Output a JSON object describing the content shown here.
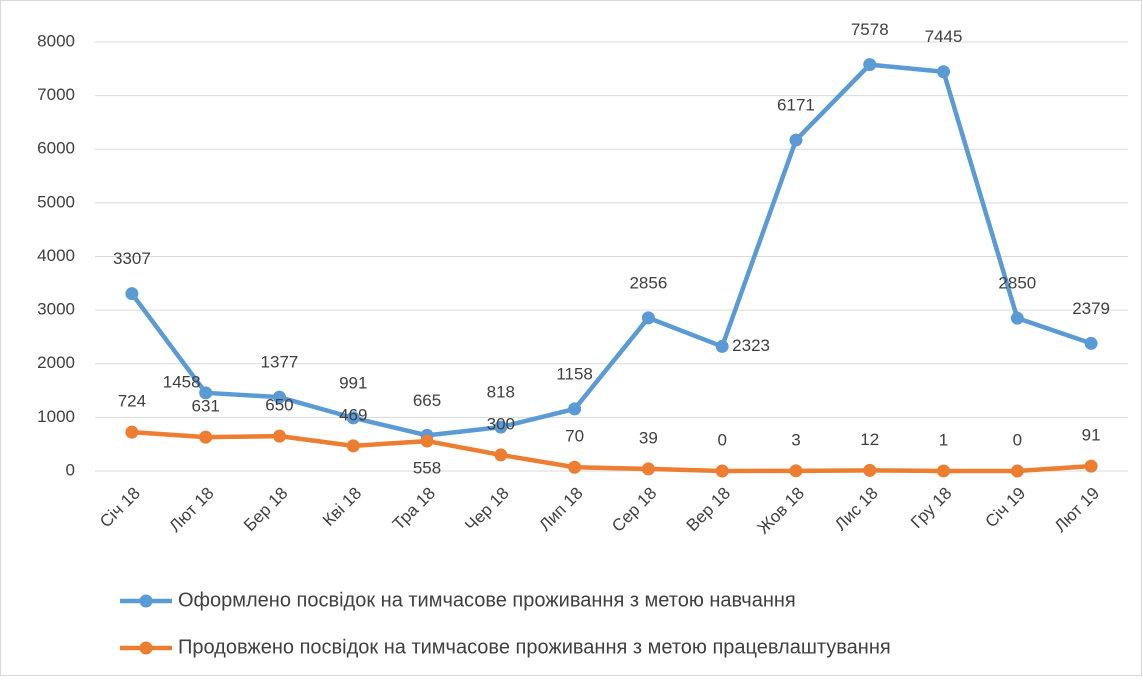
{
  "chart_data": {
    "type": "line",
    "categories": [
      "Січ 18",
      "Лют 18",
      "Бер 18",
      "Кві 18",
      "Тра 18",
      "Чер 18",
      "Лип 18",
      "Сер 18",
      "Вер 18",
      "Жов 18",
      "Лис 18",
      "Гру 18",
      "Січ 19",
      "Лют 19"
    ],
    "series": [
      {
        "name": "Оформлено посвідок на тимчасове проживання з метою навчання",
        "color": "#5b9bd5",
        "values": [
          3307,
          1458,
          1377,
          991,
          665,
          818,
          1158,
          2856,
          2323,
          6171,
          7578,
          7445,
          2850,
          2379
        ]
      },
      {
        "name": "Продовжено посвідок на тимчасове проживання з метою працевлаштування",
        "color": "#ed7d31",
        "values": [
          724,
          631,
          650,
          469,
          558,
          300,
          70,
          39,
          0,
          3,
          12,
          1,
          0,
          91
        ]
      }
    ],
    "ylim": [
      0,
      8000
    ],
    "yticks": [
      0,
      1000,
      2000,
      3000,
      4000,
      5000,
      6000,
      7000,
      8000
    ],
    "grid": true,
    "legend": "bottom"
  }
}
